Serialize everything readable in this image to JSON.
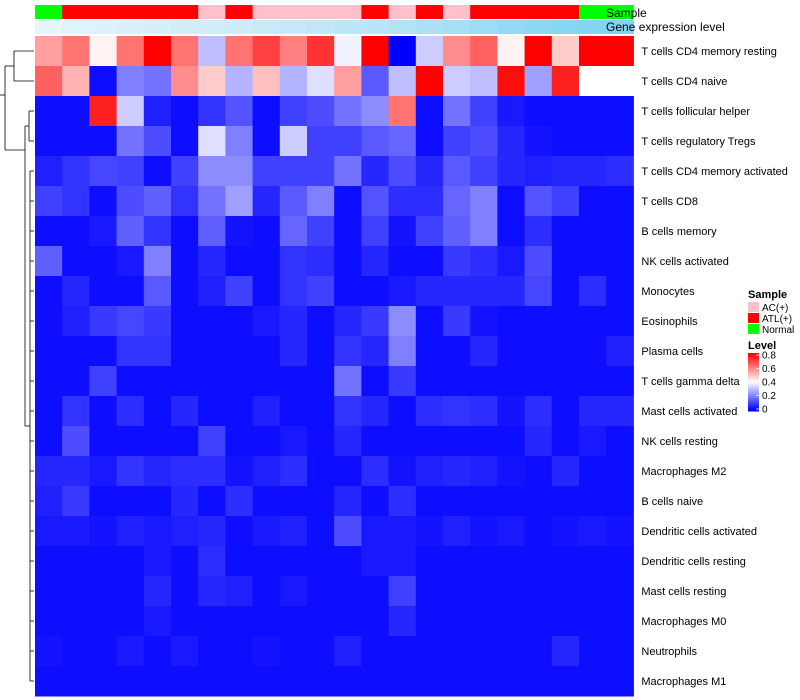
{
  "chart_data": {
    "type": "heatmap",
    "title": "",
    "annotations": {
      "sample_label": "Sample",
      "gene_label": "Gene expression level",
      "sample_groups": [
        "Normal",
        "ATL(+)",
        "ATL(+)",
        "ATL(+)",
        "ATL(+)",
        "ATL(+)",
        "AC(+)",
        "ATL(+)",
        "AC(+)",
        "AC(+)",
        "AC(+)",
        "AC(+)",
        "ATL(+)",
        "AC(+)",
        "ATL(+)",
        "AC(+)",
        "ATL(+)",
        "ATL(+)",
        "ATL(+)",
        "ATL(+)",
        "Normal",
        "Normal"
      ],
      "gene_levels": [
        0.05,
        0.08,
        0.1,
        0.12,
        0.15,
        0.18,
        0.2,
        0.22,
        0.25,
        0.28,
        0.3,
        0.33,
        0.36,
        0.4,
        0.45,
        0.5,
        0.55,
        0.6,
        0.65,
        0.7,
        0.72,
        0.75
      ]
    },
    "rows": [
      "T cells CD4 memory resting",
      "T cells CD4 naive",
      "T cells follicular helper",
      "T cells regulatory  Tregs",
      "T cells CD4 memory activated",
      "T cells CD8",
      "B cells memory",
      "NK cells activated",
      "Monocytes",
      "Eosinophils",
      "Plasma cells",
      "T cells gamma delta",
      "Mast cells activated",
      "NK cells resting",
      "Macrophages M2",
      "B cells naive",
      "Dendritic cells activated",
      "Dendritic cells resting",
      "Mast cells resting",
      "Macrophages M0",
      "Neutrophils",
      "Macrophages M1"
    ],
    "values": [
      [
        0.55,
        0.62,
        0.42,
        0.62,
        0.8,
        0.62,
        0.3,
        0.62,
        0.7,
        0.6,
        0.72,
        0.38,
        0.8,
        0.0,
        0.32,
        0.58,
        0.65,
        0.42,
        0.8,
        0.48,
        0.8,
        0.8
      ],
      [
        0.65,
        0.52,
        0.02,
        0.2,
        0.18,
        0.58,
        0.48,
        0.28,
        0.5,
        0.28,
        0.35,
        0.55,
        0.14,
        0.3,
        0.8,
        0.32,
        0.3,
        0.78,
        0.25,
        0.75,
        0.4,
        0.4
      ],
      [
        0.02,
        0.02,
        0.75,
        0.32,
        0.05,
        0.02,
        0.08,
        0.13,
        0.02,
        0.1,
        0.12,
        0.18,
        0.22,
        0.62,
        0.02,
        0.18,
        0.1,
        0.04,
        0.02,
        0.02,
        0.02,
        0.02
      ],
      [
        0.02,
        0.02,
        0.02,
        0.18,
        0.12,
        0.02,
        0.35,
        0.2,
        0.02,
        0.32,
        0.1,
        0.1,
        0.14,
        0.16,
        0.02,
        0.1,
        0.12,
        0.06,
        0.03,
        0.02,
        0.02,
        0.02
      ],
      [
        0.05,
        0.08,
        0.11,
        0.1,
        0.02,
        0.1,
        0.22,
        0.22,
        0.1,
        0.1,
        0.1,
        0.18,
        0.06,
        0.12,
        0.06,
        0.14,
        0.1,
        0.06,
        0.05,
        0.06,
        0.06,
        0.07
      ],
      [
        0.1,
        0.08,
        0.02,
        0.12,
        0.15,
        0.08,
        0.18,
        0.25,
        0.06,
        0.14,
        0.2,
        0.02,
        0.13,
        0.07,
        0.07,
        0.16,
        0.2,
        0.02,
        0.13,
        0.1,
        0.02,
        0.02
      ],
      [
        0.02,
        0.02,
        0.04,
        0.15,
        0.08,
        0.02,
        0.15,
        0.03,
        0.02,
        0.16,
        0.1,
        0.02,
        0.1,
        0.03,
        0.1,
        0.15,
        0.2,
        0.02,
        0.07,
        0.02,
        0.02,
        0.02
      ],
      [
        0.15,
        0.02,
        0.02,
        0.04,
        0.2,
        0.02,
        0.06,
        0.02,
        0.02,
        0.08,
        0.07,
        0.02,
        0.06,
        0.02,
        0.02,
        0.09,
        0.07,
        0.04,
        0.12,
        0.02,
        0.02,
        0.02
      ],
      [
        0.02,
        0.06,
        0.02,
        0.02,
        0.14,
        0.02,
        0.05,
        0.1,
        0.02,
        0.08,
        0.1,
        0.02,
        0.02,
        0.04,
        0.06,
        0.06,
        0.06,
        0.06,
        0.11,
        0.02,
        0.07,
        0.02
      ],
      [
        0.02,
        0.05,
        0.09,
        0.11,
        0.09,
        0.02,
        0.02,
        0.02,
        0.04,
        0.06,
        0.02,
        0.06,
        0.09,
        0.22,
        0.02,
        0.09,
        0.03,
        0.02,
        0.02,
        0.02,
        0.02,
        0.02
      ],
      [
        0.02,
        0.02,
        0.02,
        0.08,
        0.08,
        0.02,
        0.02,
        0.02,
        0.02,
        0.06,
        0.02,
        0.08,
        0.06,
        0.2,
        0.02,
        0.02,
        0.06,
        0.02,
        0.02,
        0.02,
        0.02,
        0.05
      ],
      [
        0.02,
        0.02,
        0.1,
        0.02,
        0.02,
        0.02,
        0.02,
        0.02,
        0.02,
        0.02,
        0.02,
        0.18,
        0.02,
        0.09,
        0.02,
        0.02,
        0.02,
        0.02,
        0.02,
        0.02,
        0.02,
        0.02
      ],
      [
        0.02,
        0.08,
        0.02,
        0.07,
        0.02,
        0.06,
        0.02,
        0.02,
        0.05,
        0.02,
        0.02,
        0.08,
        0.06,
        0.02,
        0.07,
        0.08,
        0.07,
        0.03,
        0.07,
        0.02,
        0.06,
        0.06
      ],
      [
        0.02,
        0.12,
        0.02,
        0.02,
        0.02,
        0.02,
        0.1,
        0.02,
        0.02,
        0.04,
        0.02,
        0.06,
        0.02,
        0.02,
        0.02,
        0.02,
        0.02,
        0.02,
        0.06,
        0.02,
        0.04,
        0.02
      ],
      [
        0.06,
        0.06,
        0.04,
        0.08,
        0.06,
        0.07,
        0.07,
        0.03,
        0.05,
        0.07,
        0.02,
        0.02,
        0.07,
        0.03,
        0.05,
        0.06,
        0.05,
        0.03,
        0.02,
        0.06,
        0.02,
        0.02
      ],
      [
        0.05,
        0.09,
        0.02,
        0.02,
        0.02,
        0.06,
        0.02,
        0.07,
        0.02,
        0.02,
        0.02,
        0.06,
        0.02,
        0.07,
        0.02,
        0.02,
        0.02,
        0.02,
        0.02,
        0.02,
        0.02,
        0.02
      ],
      [
        0.04,
        0.04,
        0.03,
        0.05,
        0.04,
        0.05,
        0.06,
        0.02,
        0.04,
        0.05,
        0.02,
        0.12,
        0.04,
        0.04,
        0.03,
        0.05,
        0.03,
        0.04,
        0.02,
        0.03,
        0.04,
        0.03
      ],
      [
        0.02,
        0.02,
        0.02,
        0.02,
        0.04,
        0.02,
        0.07,
        0.02,
        0.02,
        0.02,
        0.02,
        0.02,
        0.04,
        0.04,
        0.02,
        0.02,
        0.02,
        0.02,
        0.02,
        0.02,
        0.02,
        0.02
      ],
      [
        0.02,
        0.02,
        0.02,
        0.02,
        0.06,
        0.02,
        0.06,
        0.05,
        0.02,
        0.04,
        0.02,
        0.02,
        0.02,
        0.1,
        0.02,
        0.02,
        0.02,
        0.02,
        0.02,
        0.02,
        0.02,
        0.02
      ],
      [
        0.02,
        0.02,
        0.02,
        0.02,
        0.04,
        0.02,
        0.02,
        0.02,
        0.02,
        0.02,
        0.02,
        0.02,
        0.02,
        0.06,
        0.02,
        0.02,
        0.02,
        0.02,
        0.02,
        0.02,
        0.02,
        0.02
      ],
      [
        0.03,
        0.02,
        0.02,
        0.04,
        0.02,
        0.04,
        0.02,
        0.02,
        0.03,
        0.02,
        0.02,
        0.05,
        0.02,
        0.02,
        0.02,
        0.02,
        0.02,
        0.02,
        0.02,
        0.06,
        0.02,
        0.02
      ],
      [
        0.02,
        0.02,
        0.02,
        0.02,
        0.02,
        0.02,
        0.02,
        0.02,
        0.02,
        0.02,
        0.02,
        0.02,
        0.02,
        0.02,
        0.02,
        0.02,
        0.02,
        0.02,
        0.02,
        0.02,
        0.02,
        0.02
      ]
    ],
    "legend": {
      "sample_title": "Sample",
      "sample_items": [
        {
          "label": "AC(+)",
          "color": "#ffc0cb"
        },
        {
          "label": "ATL(+)",
          "color": "#ff0000"
        },
        {
          "label": "Normal",
          "color": "#00ff00"
        }
      ],
      "level_title": "Level",
      "level_ticks": [
        "0.8",
        "0.6",
        "0.4",
        "0.2",
        "0"
      ],
      "level_range": [
        0,
        0.8
      ]
    },
    "colors": {
      "low": "#0000ff",
      "mid": "#ffffff",
      "high": "#ff0000",
      "gene_low": "#eef6fb",
      "gene_high": "#5ac8ee"
    }
  }
}
